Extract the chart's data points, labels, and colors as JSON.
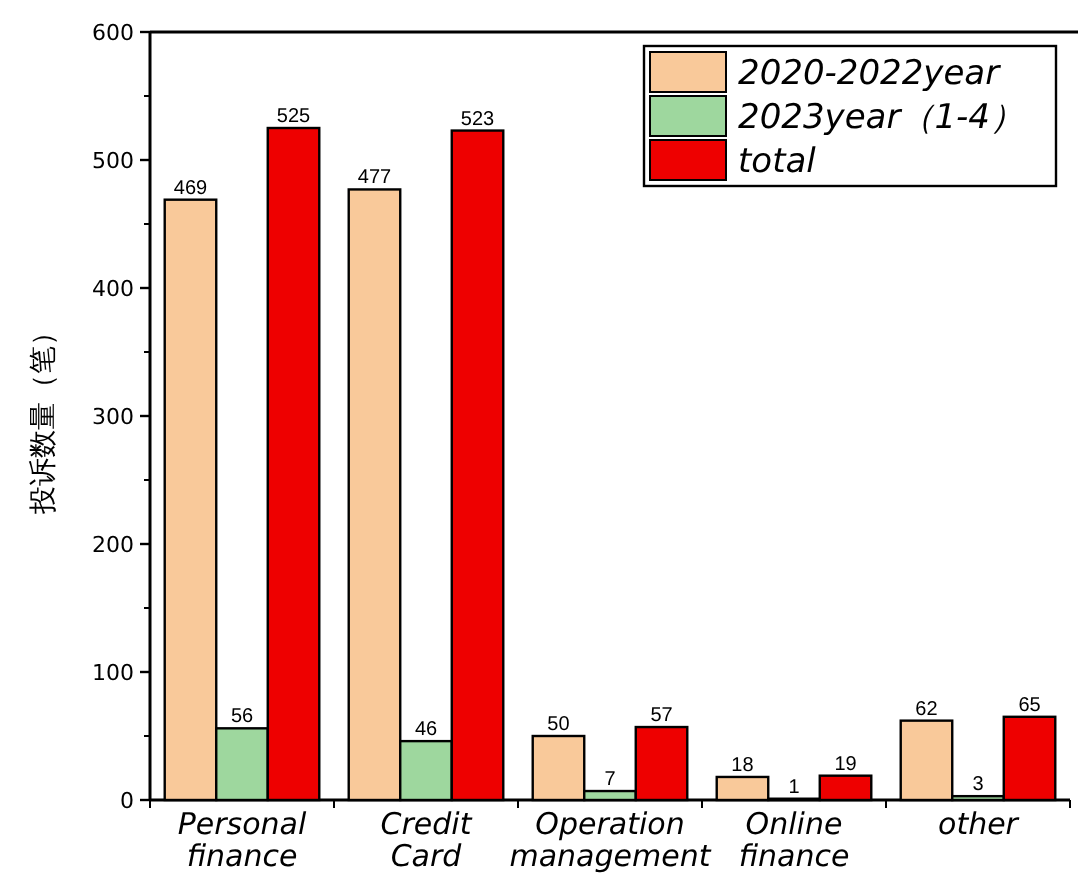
{
  "chart_data": {
    "type": "bar",
    "ylabel": "投诉数量（笔）",
    "categories": [
      "Personal finance",
      "Credit Card",
      "Operation management",
      "Online finance",
      "other"
    ],
    "series": [
      {
        "name": "2020-2022year",
        "color": "#f9c99a",
        "values": [
          469,
          477,
          50,
          18,
          62
        ]
      },
      {
        "name": "2023year（1-4）",
        "color": "#9ed79e",
        "values": [
          56,
          46,
          7,
          1,
          3
        ]
      },
      {
        "name": "total",
        "color": "#ee0000",
        "values": [
          525,
          523,
          57,
          19,
          65
        ]
      }
    ],
    "ylim": [
      0,
      600
    ],
    "yticks": [
      0,
      100,
      200,
      300,
      400,
      500,
      600
    ],
    "data_labels": true,
    "legend": "top right"
  }
}
